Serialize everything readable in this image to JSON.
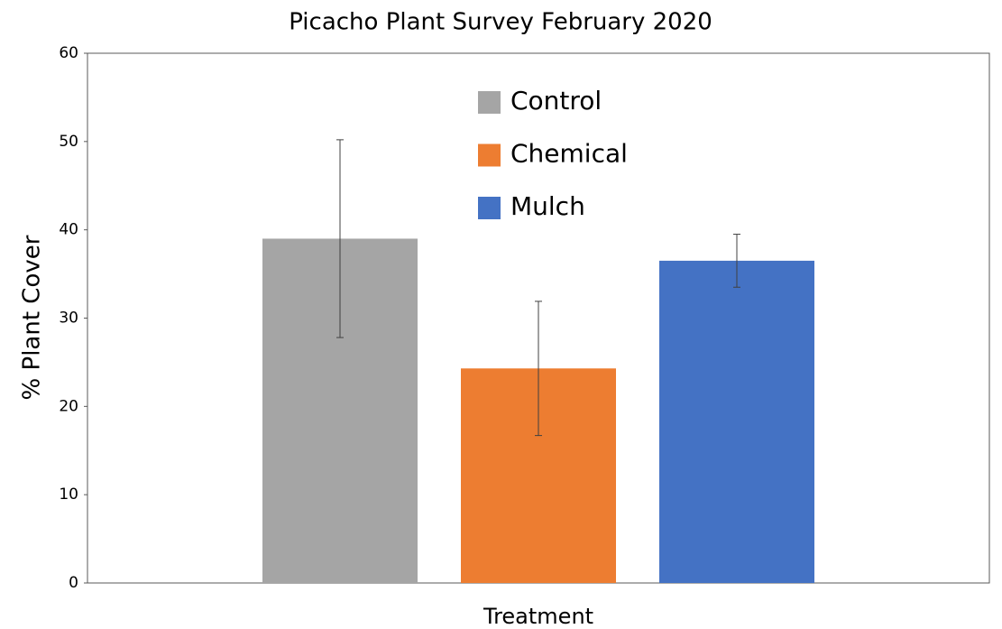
{
  "chart_data": {
    "type": "bar",
    "title": "Picacho Plant Survey February 2020",
    "x_label": "Treatment",
    "y_label": "% Plant Cover",
    "categories": [
      null
    ],
    "series": [
      {
        "name": "Control",
        "color": "#a5a5a5",
        "values": [
          39
        ],
        "errors": [
          11.2
        ]
      },
      {
        "name": "Chemical",
        "color": "#ed7d31",
        "values": [
          24.3
        ],
        "errors": [
          7.6
        ]
      },
      {
        "name": "Mulch",
        "color": "#4472c4",
        "values": [
          36.5
        ],
        "errors": [
          3
        ]
      }
    ],
    "ylim": [
      0,
      60
    ],
    "yticks": [
      0,
      10,
      20,
      30,
      40,
      50,
      60
    ],
    "grid": false,
    "legend": "top"
  }
}
